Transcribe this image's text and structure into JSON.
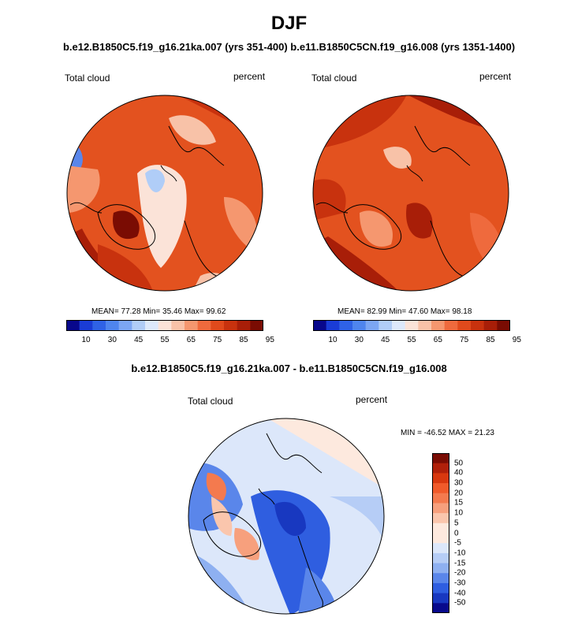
{
  "figure": {
    "title": "DJF",
    "subtitle": "b.e12.B1850C5.f19_g16.21ka.007 (yrs 351-400) b.e11.B1850C5CN.f19_g16.008 (yrs 1351-1400)"
  },
  "panels": [
    {
      "variable": "Total cloud",
      "units": "percent",
      "stats": "MEAN= 77.28  Min= 35.46  Max= 99.62"
    },
    {
      "variable": "Total cloud",
      "units": "percent",
      "stats": "MEAN= 82.99  Min= 47.60  Max= 98.18"
    }
  ],
  "colorbar_top": {
    "labels": [
      "10",
      "30",
      "45",
      "55",
      "65",
      "75",
      "85",
      "95"
    ],
    "colors": [
      "#08088c",
      "#1a3cd6",
      "#2f62e6",
      "#4f85ee",
      "#7ca6f3",
      "#b0cdf7",
      "#dde9fb",
      "#fbe3d8",
      "#f8c2a8",
      "#f5976f",
      "#ef6a3d",
      "#e04a1c",
      "#c8320e",
      "#a81e08",
      "#7a0c03"
    ]
  },
  "difference": {
    "title": "b.e12.B1850C5.f19_g16.21ka.007 - b.e11.B1850C5CN.f19_g16.008",
    "variable": "Total cloud",
    "units": "percent",
    "stats": "MIN = -46.52  MAX =  21.23",
    "colorbar_labels": [
      "50",
      "40",
      "30",
      "20",
      "15",
      "10",
      "5",
      "0",
      "-5",
      "-10",
      "-15",
      "-20",
      "-30",
      "-40",
      "-50"
    ],
    "colorbar_colors": [
      "#7a0c03",
      "#b0200a",
      "#d8380f",
      "#f05a2a",
      "#f47a4e",
      "#f7a07d",
      "#fac6ad",
      "#fde9de",
      "#dce7fa",
      "#b6cdf6",
      "#8eb0f1",
      "#5a86ea",
      "#2f5ee0",
      "#1838c0",
      "#080a8c"
    ]
  }
}
